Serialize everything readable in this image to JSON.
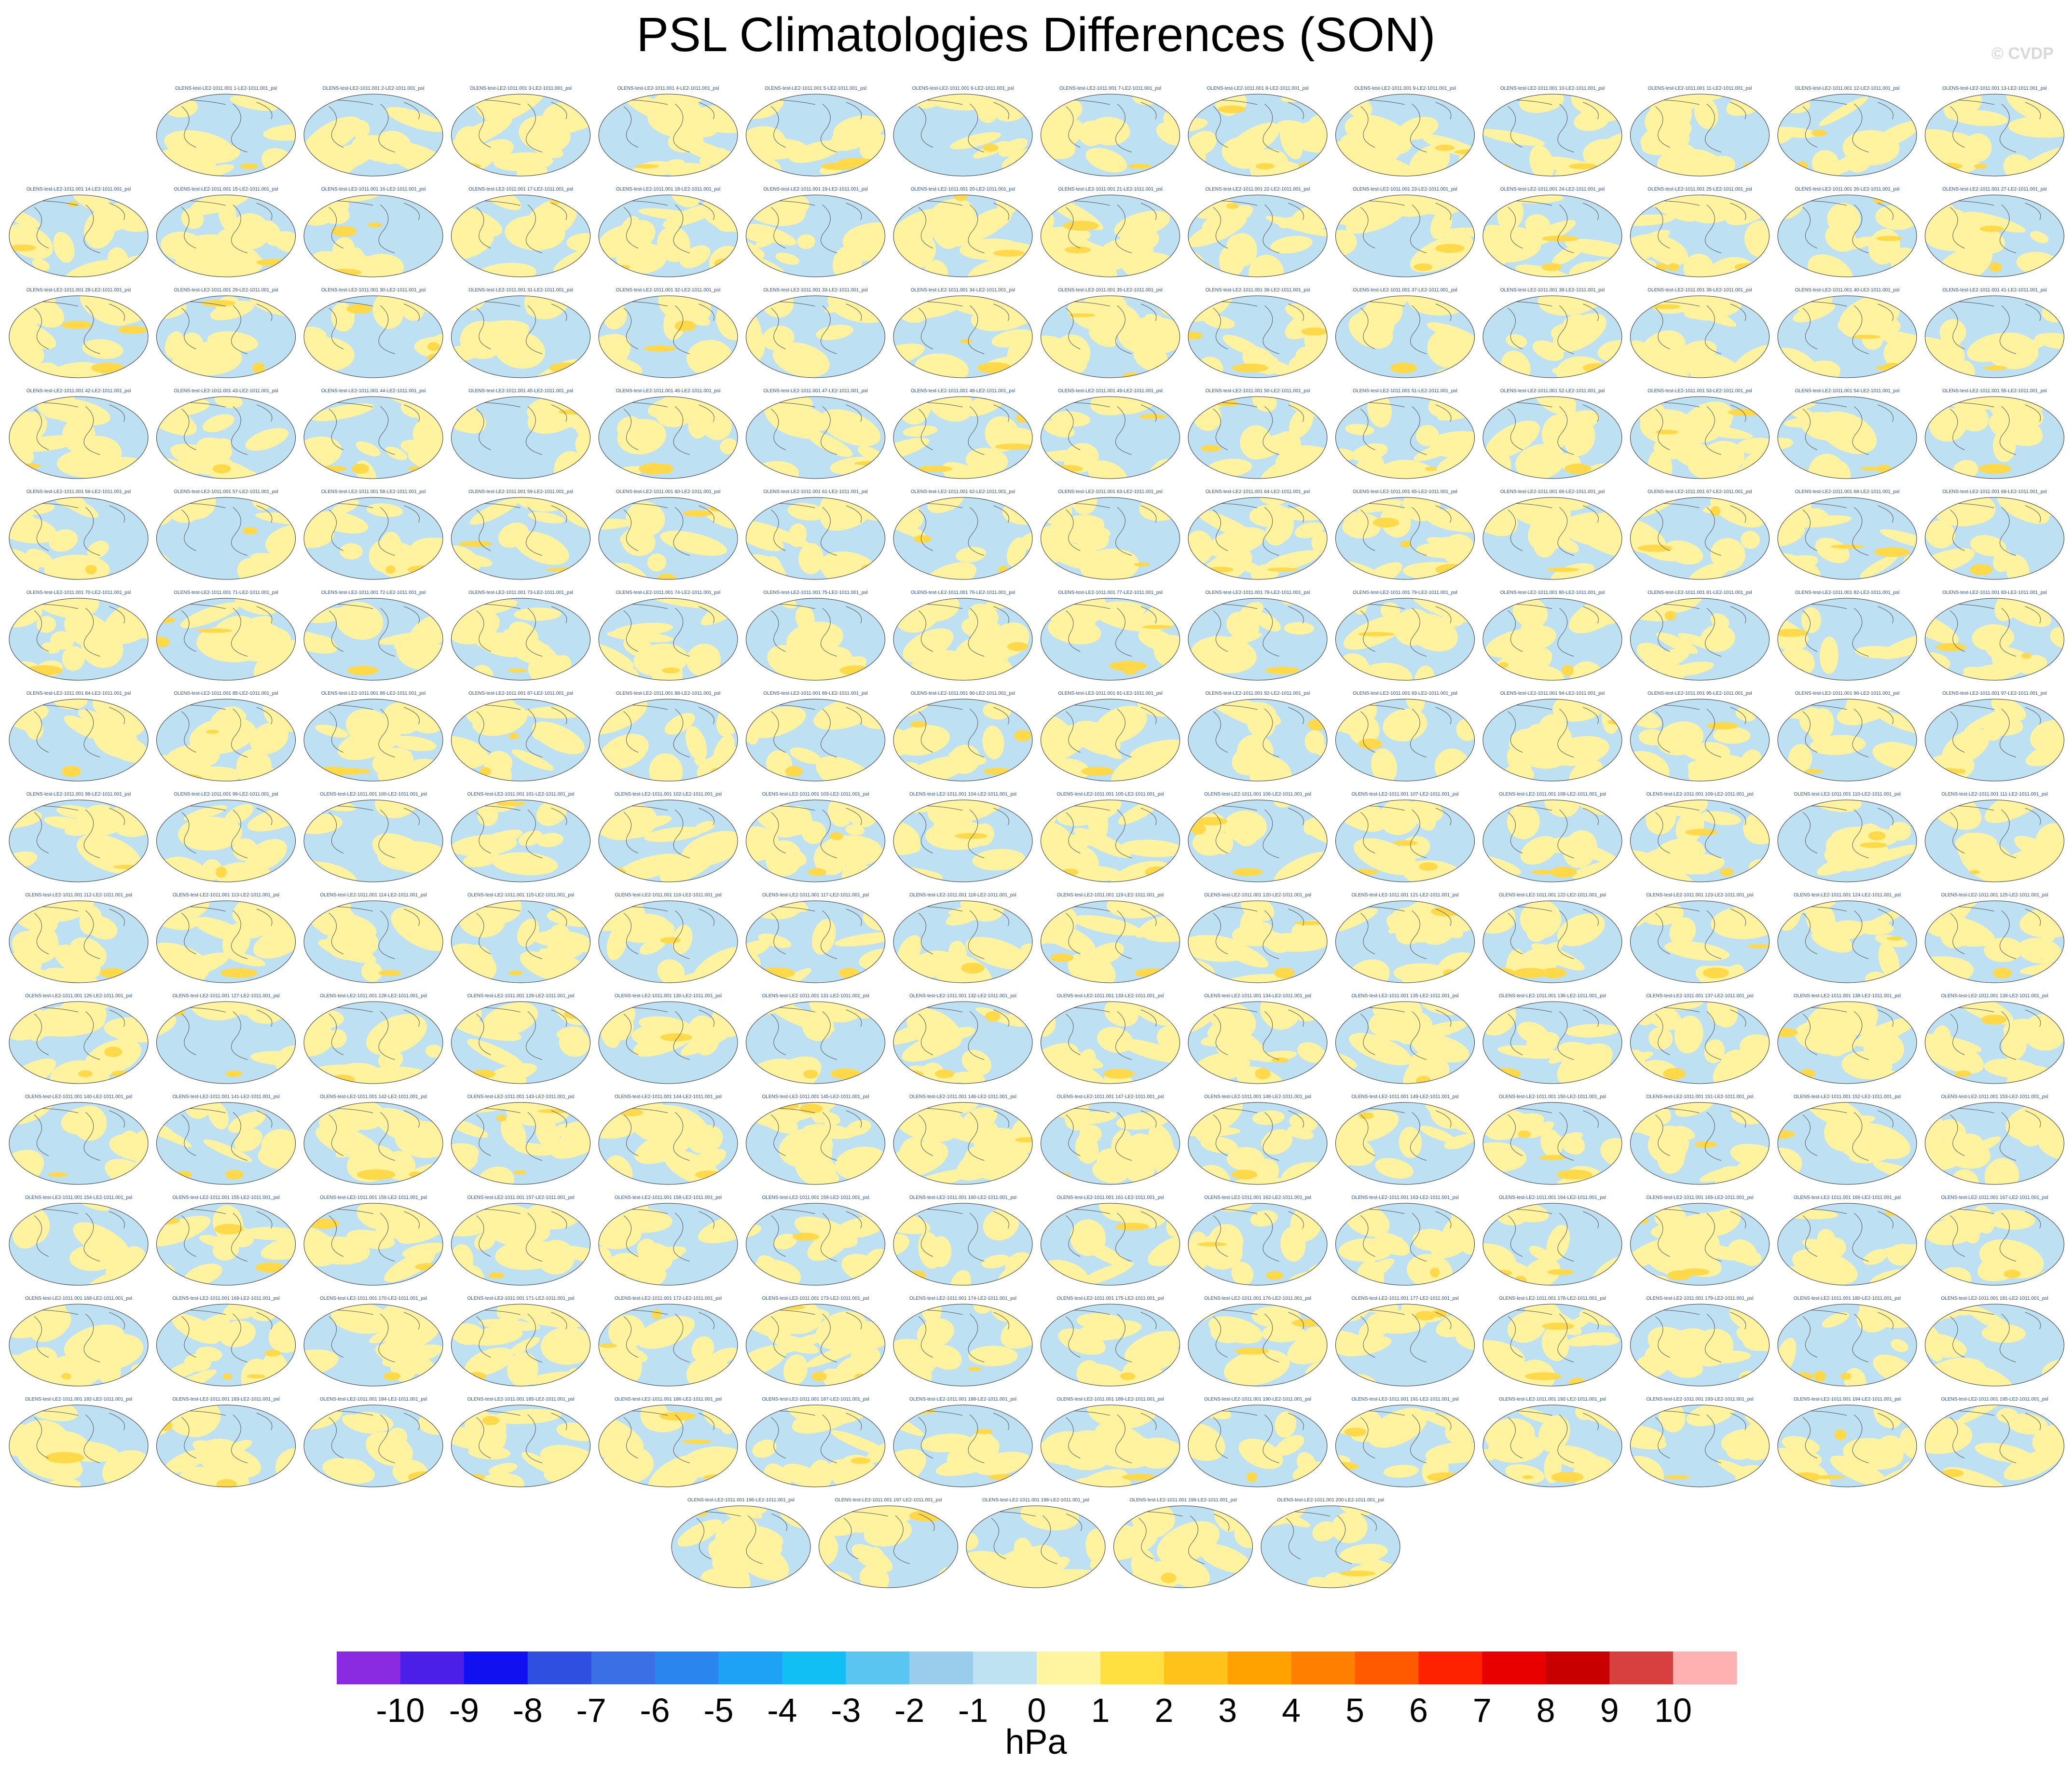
{
  "title": "PSL Climatologies Differences (SON)",
  "watermark": "© CVDP",
  "chart_data": {
    "type": "heatmap",
    "title": "PSL Climatologies Differences (SON)",
    "variable": "psl",
    "season": "SON",
    "panel_count": 200,
    "panel_label_template": "OLENS-test-LE2-1011.001 {n}-LE2-1011.001_psl",
    "panel_labels_start": 1,
    "colorbar": {
      "units": "hPa",
      "tick_labels": [
        "-10",
        "-9",
        "-8",
        "-7",
        "-6",
        "-5",
        "-4",
        "-3",
        "-2",
        "-1",
        "0",
        "1",
        "2",
        "3",
        "4",
        "5",
        "6",
        "7",
        "8",
        "9",
        "10"
      ],
      "colors": [
        "#8a2be2",
        "#4b1fe8",
        "#1010f0",
        "#2f4fe0",
        "#3a6fe6",
        "#2a86ee",
        "#1ea2f5",
        "#12bff5",
        "#5ac5f0",
        "#9acdec",
        "#bfe2f2",
        "#fff5a0",
        "#ffe040",
        "#ffc21a",
        "#ffa200",
        "#ff8000",
        "#ff5a00",
        "#ff2200",
        "#e80000",
        "#c80000",
        "#d84040",
        "#ffb0b0"
      ]
    },
    "map_palette": {
      "ocean_negative": "#bde0f3",
      "positive": "#fff3a0",
      "positive_strong": "#ffd94a",
      "coast": "#555555"
    }
  }
}
